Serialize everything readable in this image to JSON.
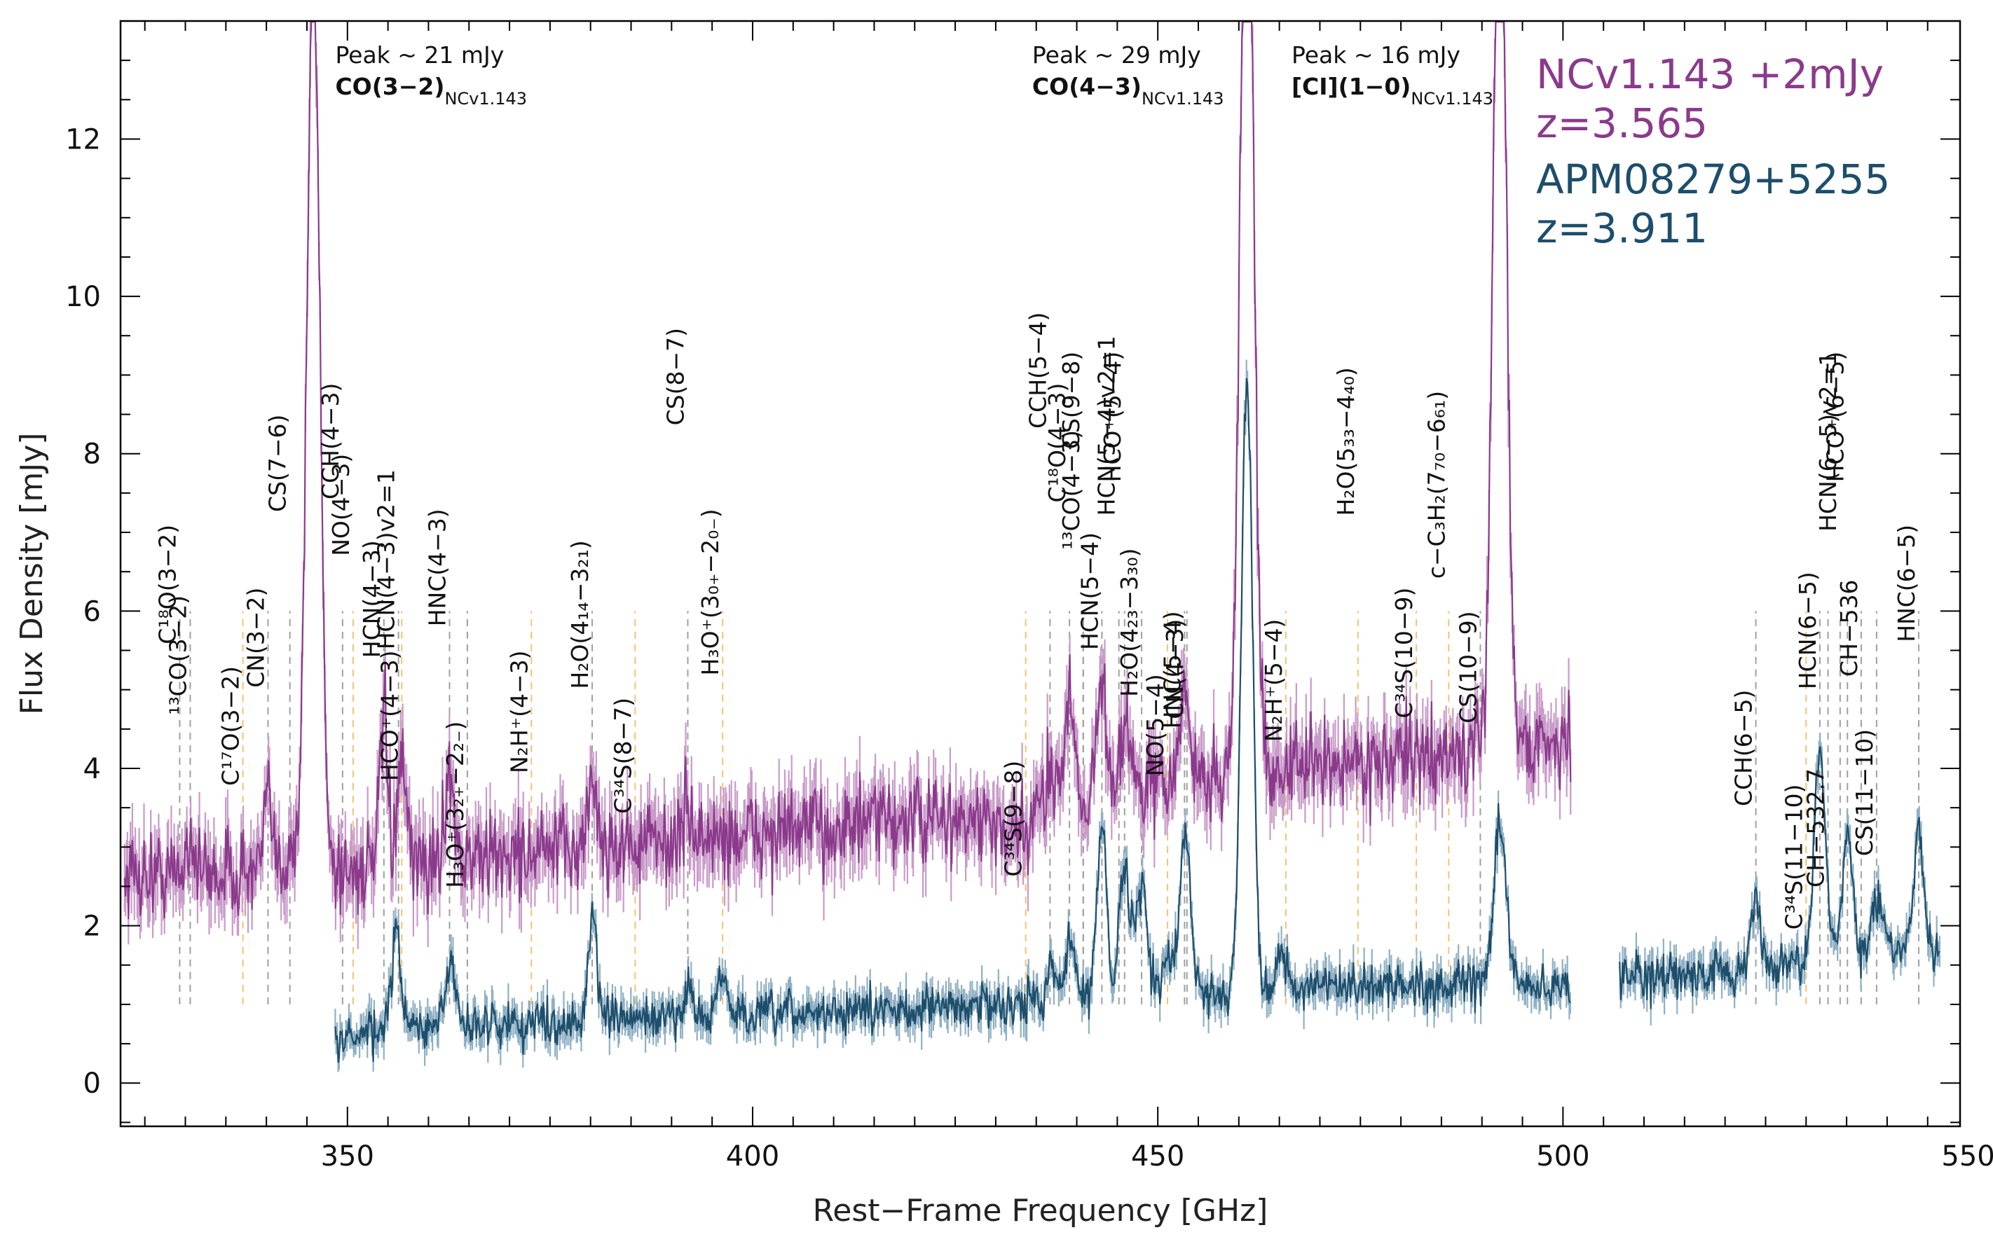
{
  "chart_data": {
    "type": "line",
    "xlabel": "Rest−Frame Frequency [GHz]",
    "ylabel": "Flux Density [mJy]",
    "xlim": [
      322,
      549
    ],
    "ylim": [
      -0.55,
      13.5
    ],
    "x_ticks": [
      350,
      400,
      450,
      500,
      550
    ],
    "y_ticks": [
      0,
      2,
      4,
      6,
      8,
      10,
      12
    ],
    "grid": false,
    "legend_position": "top-right",
    "colors": {
      "ncv": "#8b3a8b",
      "ncv_band": "#c99bc9",
      "apm": "#1d4e6b",
      "apm_band": "#8fb0c4",
      "ref_gray": "#a0a0a0",
      "ref_orange": "#f3c472"
    },
    "legend": [
      {
        "text": "NCv1.143 +2mJy",
        "color": "#8b3a8b"
      },
      {
        "text": "z=3.565",
        "color": "#8b3a8b"
      },
      {
        "text": "APM08279+5255",
        "color": "#1d4e6b"
      },
      {
        "text": "z=3.911",
        "color": "#1d4e6b"
      }
    ],
    "series": [
      {
        "name": "NCv1.143 +2mJy",
        "segments": [
          [
            322.5,
            501
          ]
        ],
        "continuum": [
          [
            322.5,
            2.65
          ],
          [
            350,
            2.7
          ],
          [
            380,
            3.0
          ],
          [
            400,
            3.15
          ],
          [
            420,
            3.35
          ],
          [
            430,
            3.3
          ],
          [
            431,
            3.0
          ],
          [
            434,
            3.2
          ],
          [
            436,
            3.55
          ],
          [
            450,
            3.8
          ],
          [
            470,
            4.05
          ],
          [
            490,
            4.2
          ],
          [
            501,
            4.4
          ]
        ],
        "noise": 0.28,
        "lines": [
          {
            "x": 330.6,
            "peak": 0.5,
            "w": 0.5
          },
          {
            "x": 340.2,
            "peak": 0.9,
            "w": 0.5
          },
          {
            "x": 342.9,
            "peak": 0.35,
            "w": 0.5
          },
          {
            "x": 345.8,
            "peak": 11.5,
            "w": 0.8
          },
          {
            "x": 354.5,
            "peak": 1.9,
            "w": 0.5
          },
          {
            "x": 356.7,
            "peak": 1.3,
            "w": 0.5
          },
          {
            "x": 362.6,
            "peak": 1.3,
            "w": 0.5
          },
          {
            "x": 380.2,
            "peak": 0.9,
            "w": 0.5
          },
          {
            "x": 392.0,
            "peak": 0.4,
            "w": 0.5
          },
          {
            "x": 436.9,
            "peak": 0.5,
            "w": 0.6
          },
          {
            "x": 439.1,
            "peak": 1.3,
            "w": 0.6
          },
          {
            "x": 443.1,
            "peak": 1.3,
            "w": 0.6
          },
          {
            "x": 445.9,
            "peak": 0.9,
            "w": 0.6
          },
          {
            "x": 453.3,
            "peak": 1.1,
            "w": 0.6
          },
          {
            "x": 461.0,
            "peak": 13.0,
            "w": 0.8
          },
          {
            "x": 492.2,
            "peak": 12.0,
            "w": 0.8
          }
        ]
      },
      {
        "name": "APM08279+5255",
        "segments": [
          [
            348.5,
            501
          ],
          [
            507,
            546.5
          ]
        ],
        "continuum": [
          [
            348.5,
            0.55
          ],
          [
            360,
            0.72
          ],
          [
            380,
            0.8
          ],
          [
            400,
            0.85
          ],
          [
            420,
            0.95
          ],
          [
            440,
            1.05
          ],
          [
            460,
            1.15
          ],
          [
            480,
            1.25
          ],
          [
            501,
            1.22
          ],
          [
            507,
            1.28
          ],
          [
            520,
            1.4
          ],
          [
            530,
            1.55
          ],
          [
            540,
            1.75
          ],
          [
            546.5,
            1.65
          ]
        ],
        "noise": 0.14,
        "lines": [
          {
            "x": 356.0,
            "peak": 1.2,
            "w": 0.6
          },
          {
            "x": 362.8,
            "peak": 0.8,
            "w": 0.6
          },
          {
            "x": 380.3,
            "peak": 1.4,
            "w": 0.5
          },
          {
            "x": 392.0,
            "peak": 0.4,
            "w": 0.6
          },
          {
            "x": 396.3,
            "peak": 0.5,
            "w": 0.6
          },
          {
            "x": 436.9,
            "peak": 0.5,
            "w": 0.6
          },
          {
            "x": 439.1,
            "peak": 0.8,
            "w": 0.6
          },
          {
            "x": 443.1,
            "peak": 2.3,
            "w": 0.6
          },
          {
            "x": 445.9,
            "peak": 1.6,
            "w": 0.7
          },
          {
            "x": 448.0,
            "peak": 1.4,
            "w": 0.7
          },
          {
            "x": 451.2,
            "peak": 0.5,
            "w": 0.6
          },
          {
            "x": 453.4,
            "peak": 2.0,
            "w": 0.7
          },
          {
            "x": 461.0,
            "peak": 7.8,
            "w": 0.7
          },
          {
            "x": 465.2,
            "peak": 0.5,
            "w": 0.6
          },
          {
            "x": 492.2,
            "peak": 2.0,
            "w": 0.8
          },
          {
            "x": 523.8,
            "peak": 0.9,
            "w": 0.5
          },
          {
            "x": 531.7,
            "peak": 2.6,
            "w": 0.7
          },
          {
            "x": 535.1,
            "peak": 1.6,
            "w": 0.6
          },
          {
            "x": 538.7,
            "peak": 0.6,
            "w": 0.6
          },
          {
            "x": 543.9,
            "peak": 1.6,
            "w": 0.6
          }
        ]
      }
    ],
    "peak_annotations": [
      {
        "peak": "Peak ~ 21 mJy",
        "line": "CO(3−2)",
        "sub": "NCv1.143"
      },
      {
        "peak": "Peak ~ 29 mJy",
        "line": "CO(4−3)",
        "sub": "NCv1.143"
      },
      {
        "peak": "Peak ~ 16 mJy",
        "line": "[CI](1−0)",
        "sub": "NCv1.143"
      }
    ],
    "reference_lines": [
      {
        "label": "C¹⁸O(3−2)",
        "x": 329.3,
        "color": "gray"
      },
      {
        "label": "¹³CO(3−2)",
        "x": 330.6,
        "color": "gray"
      },
      {
        "label": "C¹⁷O(3−2)",
        "x": 337.1,
        "color": "orange"
      },
      {
        "label": "CN(3−2)",
        "x": 340.2,
        "color": "gray"
      },
      {
        "label": "CS(7−6)",
        "x": 342.9,
        "color": "gray"
      },
      {
        "label": "CCH(4−3)",
        "x": 349.4,
        "color": "gray"
      },
      {
        "label": "NO(4−3)",
        "x": 350.7,
        "color": "orange"
      },
      {
        "label": "HCN(4−3)",
        "x": 354.5,
        "color": "gray"
      },
      {
        "label": "HCN(4−3)v2=1",
        "x": 356.3,
        "color": "gray"
      },
      {
        "label": "HCO⁺(4−3)",
        "x": 356.7,
        "color": "orange"
      },
      {
        "label": "HNC(4−3)",
        "x": 362.6,
        "color": "gray"
      },
      {
        "label": "H₃O⁺(3₂₊−2₂₋)",
        "x": 364.8,
        "color": "gray"
      },
      {
        "label": "N₂H⁺(4−3)",
        "x": 372.7,
        "color": "orange"
      },
      {
        "label": "H₂O(4₁₄−3₂₁)",
        "x": 380.2,
        "color": "gray"
      },
      {
        "label": "C³⁴S(8−7)",
        "x": 385.5,
        "color": "orange"
      },
      {
        "label": "CS(8−7)",
        "x": 392.0,
        "color": "gray"
      },
      {
        "label": "H₃O⁺(3₀₊−2₀₋)",
        "x": 396.3,
        "color": "orange"
      },
      {
        "label": "C³⁴S(9−8)",
        "x": 433.7,
        "color": "orange"
      },
      {
        "label": "CCH(5−4)",
        "x": 436.7,
        "color": "gray"
      },
      {
        "label": "C¹⁸O(4−3)",
        "x": 439.1,
        "color": "gray"
      },
      {
        "label": "¹³CO(4−3)",
        "x": 440.8,
        "color": "gray"
      },
      {
        "label": "CS(9−8)",
        "x": 440.8,
        "color": "gray"
      },
      {
        "label": "HCN(5−4)",
        "x": 443.1,
        "color": "gray"
      },
      {
        "label": "HCN(5−4)v2=1",
        "x": 445.2,
        "color": "gray"
      },
      {
        "label": "HCO⁺(5−4)",
        "x": 445.9,
        "color": "gray"
      },
      {
        "label": "H₂O(4₂₃−3₃₀)",
        "x": 448.0,
        "color": "gray"
      },
      {
        "label": "NO(5−4)",
        "x": 451.2,
        "color": "orange"
      },
      {
        "label": "HNC(5−4)",
        "x": 453.3,
        "color": "gray"
      },
      {
        "label": "CN(4−3)",
        "x": 453.6,
        "color": "gray"
      },
      {
        "label": "N₂H⁺(5−4)",
        "x": 465.8,
        "color": "orange"
      },
      {
        "label": "H₂O(5₃₃−4₄₀)",
        "x": 474.7,
        "color": "orange"
      },
      {
        "label": "C³⁴S(10−9)",
        "x": 481.9,
        "color": "orange"
      },
      {
        "label": "c−C₃H₂(7₇₀−6₆₁)",
        "x": 485.9,
        "color": "orange"
      },
      {
        "label": "CS(10−9)",
        "x": 489.8,
        "color": "gray"
      },
      {
        "label": "CCH(6−5)",
        "x": 523.8,
        "color": "gray"
      },
      {
        "label": "C³⁴S(11−10)",
        "x": 530.0,
        "color": "orange"
      },
      {
        "label": "HCN(6−5)",
        "x": 531.7,
        "color": "gray"
      },
      {
        "label": "CH−532.7",
        "x": 532.7,
        "color": "gray"
      },
      {
        "label": "HCN(6−5)v2=1",
        "x": 534.2,
        "color": "gray"
      },
      {
        "label": "HCO⁺(6−5)",
        "x": 535.1,
        "color": "gray"
      },
      {
        "label": "CH−536",
        "x": 536.8,
        "color": "gray"
      },
      {
        "label": "CS(11−10)",
        "x": 538.7,
        "color": "gray"
      },
      {
        "label": "HNC(6−5)",
        "x": 543.9,
        "color": "gray"
      }
    ]
  }
}
